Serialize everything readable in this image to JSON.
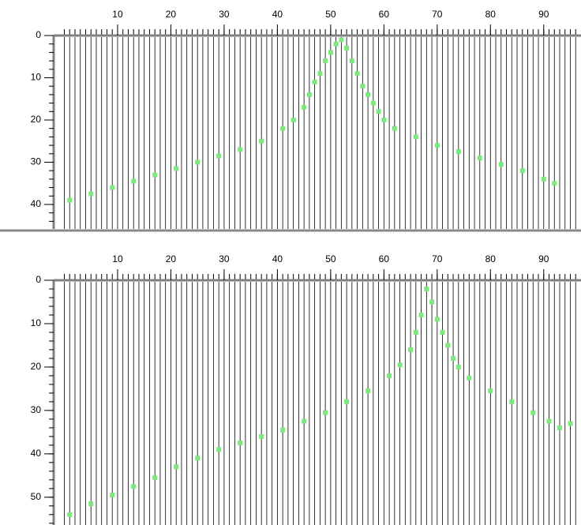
{
  "chart_data": [
    {
      "type": "scatter",
      "color": "#7de87d",
      "xlim": [
        -2,
        97
      ],
      "ylim": [
        0,
        45.8
      ],
      "xticks": [
        10,
        20,
        30,
        40,
        50,
        60,
        70,
        80,
        90
      ],
      "yticks": [
        0,
        10,
        20,
        30,
        40
      ],
      "x": [
        1,
        5,
        9,
        13,
        17,
        21,
        25,
        29,
        33,
        37,
        41,
        43,
        45,
        46,
        47,
        48,
        49,
        50,
        51,
        52,
        53,
        54,
        55,
        56,
        57,
        58,
        59,
        60,
        62,
        66,
        70,
        74,
        78,
        82,
        86,
        90,
        92
      ],
      "values": [
        39,
        37.5,
        36,
        34.5,
        33,
        31.5,
        30,
        28.5,
        27,
        25,
        22,
        20,
        17,
        14,
        11,
        9,
        6,
        4,
        2,
        1,
        3,
        6,
        9,
        12,
        14,
        16,
        18,
        20,
        22,
        24,
        26,
        27.5,
        29,
        30.5,
        32,
        34,
        35
      ]
    },
    {
      "type": "scatter",
      "color": "#7de87d",
      "xlim": [
        -2,
        97
      ],
      "ylim": [
        0,
        56.4
      ],
      "xticks": [
        10,
        20,
        30,
        40,
        50,
        60,
        70,
        80,
        90
      ],
      "yticks": [
        0,
        10,
        20,
        30,
        40,
        50
      ],
      "x": [
        1,
        5,
        9,
        13,
        17,
        21,
        25,
        29,
        33,
        37,
        41,
        45,
        49,
        53,
        57,
        61,
        63,
        65,
        66,
        67,
        68,
        69,
        70,
        71,
        72,
        73,
        74,
        76,
        80,
        84,
        88,
        91,
        93,
        95
      ],
      "values": [
        54,
        51.5,
        49.5,
        47.5,
        45.5,
        43,
        41,
        39,
        37.5,
        36,
        34.5,
        32.5,
        30.5,
        28,
        25.5,
        22,
        19.5,
        16,
        12,
        8,
        2,
        5,
        9,
        12,
        15,
        18,
        20,
        22.5,
        25.5,
        28,
        30.5,
        32.5,
        34,
        33
      ]
    }
  ]
}
